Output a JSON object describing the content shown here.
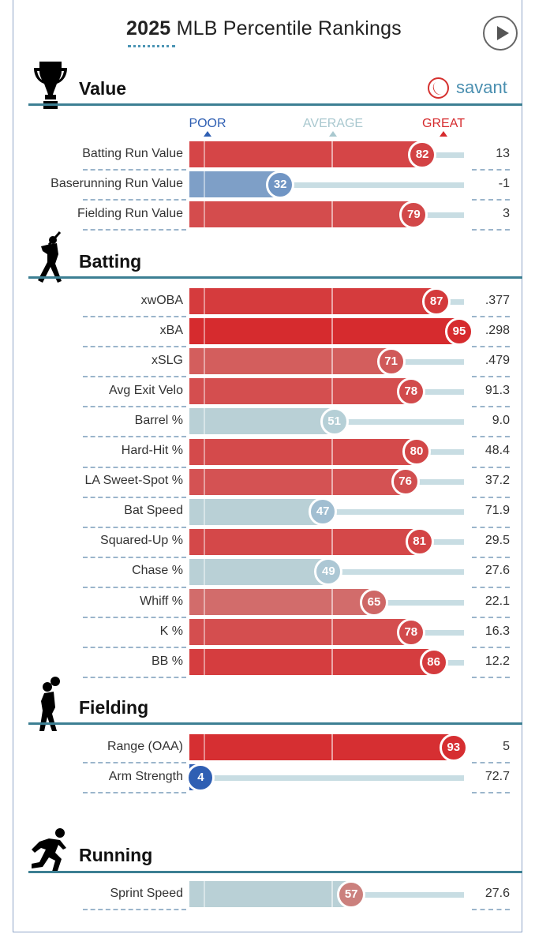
{
  "header": {
    "title_bold": "2025",
    "title_rest": "MLB Percentile Rankings",
    "play_label": "play-button",
    "brand": "savant"
  },
  "legend": {
    "poor": "POOR",
    "average": "AVERAGE",
    "great": "GREAT"
  },
  "colors": {
    "great": "#d62b2e",
    "poor": "#2f5fb3",
    "average": "#b5cfd6",
    "accent": "#3c7f93"
  },
  "chart_data": {
    "type": "bar",
    "title": "2025 MLB Percentile Rankings",
    "xlabel": "",
    "ylabel": "",
    "xlim": [
      0,
      100
    ],
    "scale_labels": [
      "POOR",
      "AVERAGE",
      "GREAT"
    ],
    "sections": [
      {
        "name": "Value",
        "metrics": [
          {
            "label": "Batting Run Value",
            "percentile": 82,
            "value": "13"
          },
          {
            "label": "Baserunning Run Value",
            "percentile": 32,
            "value": "-1"
          },
          {
            "label": "Fielding Run Value",
            "percentile": 79,
            "value": "3"
          }
        ]
      },
      {
        "name": "Batting",
        "metrics": [
          {
            "label": "xwOBA",
            "percentile": 87,
            "value": ".377"
          },
          {
            "label": "xBA",
            "percentile": 95,
            "value": ".298"
          },
          {
            "label": "xSLG",
            "percentile": 71,
            "value": ".479"
          },
          {
            "label": "Avg Exit Velo",
            "percentile": 78,
            "value": "91.3"
          },
          {
            "label": "Barrel %",
            "percentile": 51,
            "value": "9.0"
          },
          {
            "label": "Hard-Hit %",
            "percentile": 80,
            "value": "48.4"
          },
          {
            "label": "LA Sweet-Spot %",
            "percentile": 76,
            "value": "37.2"
          },
          {
            "label": "Bat Speed",
            "percentile": 47,
            "value": "71.9"
          },
          {
            "label": "Squared-Up %",
            "percentile": 81,
            "value": "29.5"
          },
          {
            "label": "Chase %",
            "percentile": 49,
            "value": "27.6"
          },
          {
            "label": "Whiff %",
            "percentile": 65,
            "value": "22.1"
          },
          {
            "label": "K %",
            "percentile": 78,
            "value": "16.3"
          },
          {
            "label": "BB %",
            "percentile": 86,
            "value": "12.2"
          }
        ]
      },
      {
        "name": "Fielding",
        "metrics": [
          {
            "label": "Range (OAA)",
            "percentile": 93,
            "value": "5"
          },
          {
            "label": "Arm Strength",
            "percentile": 4,
            "value": "72.7"
          }
        ]
      },
      {
        "name": "Running",
        "metrics": [
          {
            "label": "Sprint Speed",
            "percentile": 57,
            "value": "27.6"
          }
        ]
      }
    ]
  }
}
